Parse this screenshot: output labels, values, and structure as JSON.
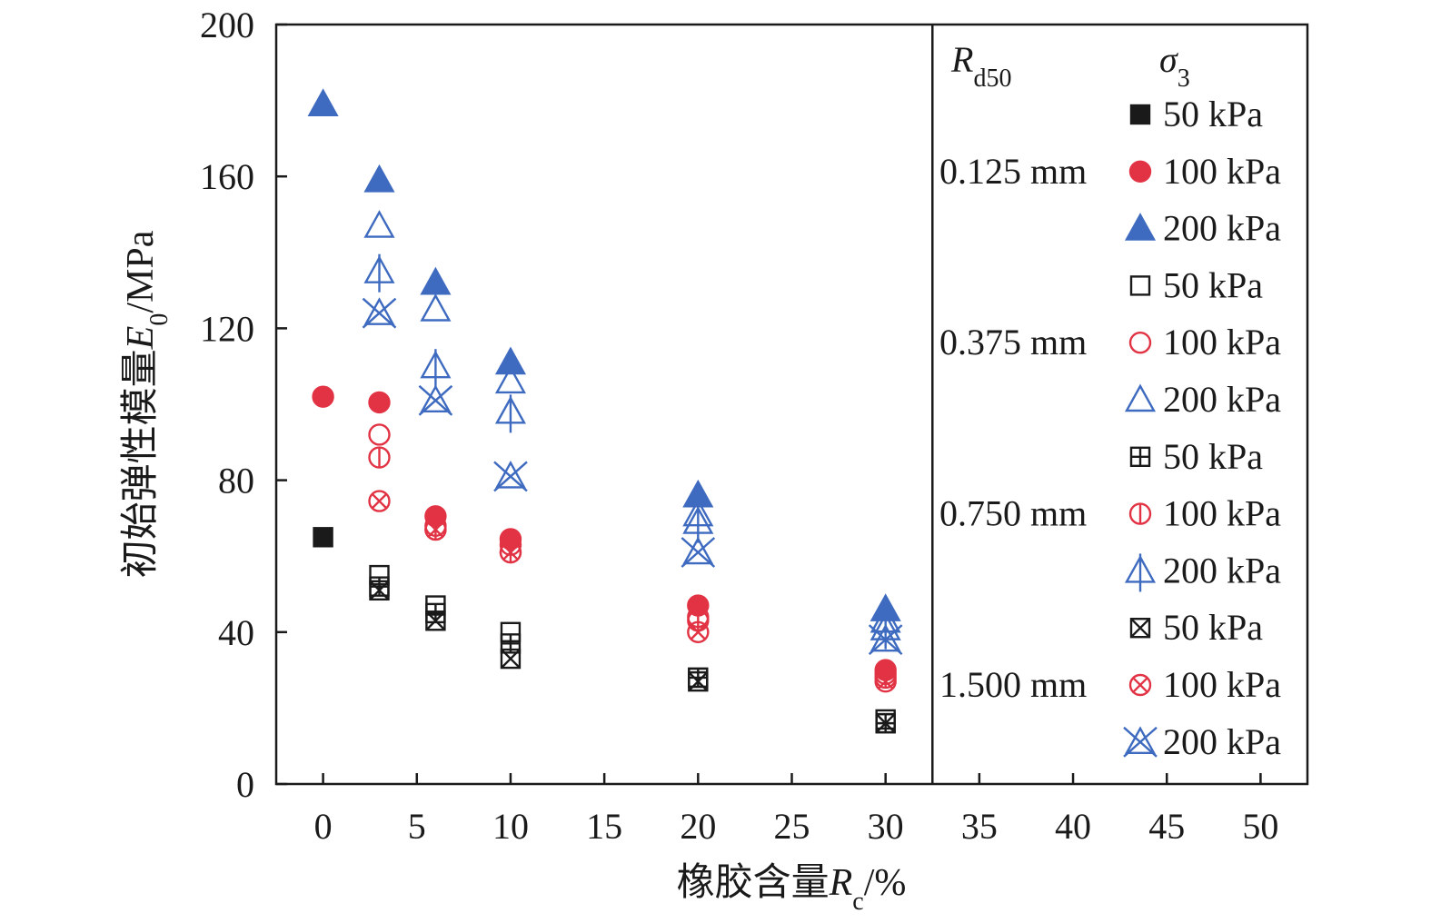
{
  "chart_data": {
    "type": "scatter",
    "xlabel": {
      "prefix": "橡胶含量",
      "var": "R",
      "sub": "c",
      "suffix": "/%"
    },
    "ylabel": {
      "prefix": "初始弹性模量",
      "var": "E",
      "sub": "0",
      "suffix": "/MPa"
    },
    "xlim": [
      -2.5,
      52.5
    ],
    "ylim": [
      0,
      200
    ],
    "xticks": [
      0,
      5,
      10,
      15,
      20,
      25,
      30,
      35,
      40,
      45,
      50
    ],
    "yticks": [
      0,
      40,
      80,
      120,
      160,
      200
    ],
    "divider_x": 32.5,
    "legend": {
      "header_left": {
        "var": "R",
        "sub": "d50"
      },
      "header_right": {
        "var": "σ",
        "sub": "3"
      },
      "groups": [
        {
          "label": "0.125 mm",
          "marker": "filled",
          "series": [
            "50 kPa",
            "100 kPa",
            "200 kPa"
          ]
        },
        {
          "label": "0.375 mm",
          "marker": "open",
          "series": [
            "50 kPa",
            "100 kPa",
            "200 kPa"
          ]
        },
        {
          "label": "0.750 mm",
          "marker": "plus",
          "series": [
            "50 kPa",
            "100 kPa",
            "200 kPa"
          ]
        },
        {
          "label": "1.500 mm",
          "marker": "cross",
          "series": [
            "50 kPa",
            "100 kPa",
            "200 kPa"
          ]
        }
      ]
    },
    "colors": {
      "50 kPa": "#1a1a1a",
      "100 kPa": "#e23344",
      "200 kPa": "#3e6bc0"
    },
    "series": [
      {
        "rd50": "0.125 mm",
        "sigma3": "50 kPa",
        "x": [
          0
        ],
        "y": [
          65
        ]
      },
      {
        "rd50": "0.125 mm",
        "sigma3": "100 kPa",
        "x": [
          0,
          3,
          6,
          10,
          20,
          30
        ],
        "y": [
          102,
          100.5,
          70.5,
          64.5,
          47,
          30
        ]
      },
      {
        "rd50": "0.125 mm",
        "sigma3": "200 kPa",
        "x": [
          0,
          3,
          6,
          10,
          20,
          30
        ],
        "y": [
          179,
          159,
          132,
          111,
          76,
          46
        ]
      },
      {
        "rd50": "0.375 mm",
        "sigma3": "50 kPa",
        "x": [
          3,
          6,
          10,
          20,
          30
        ],
        "y": [
          55,
          47,
          40,
          28,
          17
        ]
      },
      {
        "rd50": "0.375 mm",
        "sigma3": "100 kPa",
        "x": [
          3,
          6,
          10,
          20,
          30
        ],
        "y": [
          92,
          68,
          63,
          44,
          29
        ]
      },
      {
        "rd50": "0.375 mm",
        "sigma3": "200 kPa",
        "x": [
          3,
          6,
          10,
          20,
          30
        ],
        "y": [
          147,
          125,
          106,
          71,
          43
        ]
      },
      {
        "rd50": "0.750 mm",
        "sigma3": "50 kPa",
        "x": [
          3,
          6,
          10,
          20,
          30
        ],
        "y": [
          52,
          45,
          37,
          28,
          16
        ]
      },
      {
        "rd50": "0.750 mm",
        "sigma3": "100 kPa",
        "x": [
          3,
          6,
          10,
          20,
          30
        ],
        "y": [
          86,
          67,
          61,
          43,
          28
        ]
      },
      {
        "rd50": "0.750 mm",
        "sigma3": "200 kPa",
        "x": [
          3,
          6,
          10,
          20,
          30
        ],
        "y": [
          135,
          110,
          98,
          69,
          41
        ]
      },
      {
        "rd50": "1.500 mm",
        "sigma3": "50 kPa",
        "x": [
          3,
          6,
          10,
          20,
          30
        ],
        "y": [
          51,
          43,
          33,
          27,
          16
        ]
      },
      {
        "rd50": "1.500 mm",
        "sigma3": "100 kPa",
        "x": [
          3,
          6,
          10,
          20,
          30
        ],
        "y": [
          74.5,
          67,
          61,
          40,
          27
        ]
      },
      {
        "rd50": "1.500 mm",
        "sigma3": "200 kPa",
        "x": [
          3,
          6,
          10,
          20,
          30
        ],
        "y": [
          124,
          101,
          81,
          61,
          38
        ]
      }
    ]
  }
}
